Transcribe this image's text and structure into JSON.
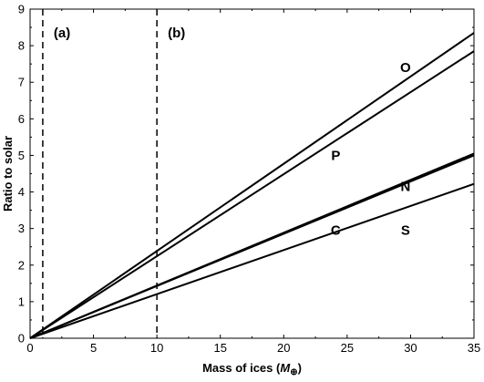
{
  "chart_data": {
    "type": "line",
    "xlabel": "Mass of ices (",
    "xlabel_unit": "M",
    "xlabel_subscript": "⊕",
    "xlabel_close": ")",
    "ylabel": "Ratio to solar",
    "xlim": [
      0,
      35
    ],
    "ylim": [
      0,
      9
    ],
    "xticks": [
      0,
      5,
      10,
      15,
      20,
      25,
      30,
      35
    ],
    "yticks": [
      0,
      1,
      2,
      3,
      4,
      5,
      6,
      7,
      8,
      9
    ],
    "grid": false,
    "legend": "none",
    "vlines": [
      {
        "x": 1,
        "label": "(a)",
        "style": "dashed"
      },
      {
        "x": 10,
        "label": "(b)",
        "style": "dashed"
      }
    ],
    "series": [
      {
        "name": "O",
        "x": [
          0,
          35
        ],
        "y": [
          0,
          8.35
        ],
        "label_at": [
          29.6,
          7.4
        ]
      },
      {
        "name": "P",
        "x": [
          0,
          35
        ],
        "y": [
          0,
          7.85
        ],
        "label_at": [
          24.1,
          5.0
        ]
      },
      {
        "name": "N",
        "x": [
          0,
          35
        ],
        "y": [
          0,
          5.05
        ],
        "label_at": [
          29.6,
          4.15
        ]
      },
      {
        "name": "C",
        "x": [
          0,
          35
        ],
        "y": [
          0,
          5.0
        ],
        "label_at": [
          24.1,
          2.95
        ]
      },
      {
        "name": "S",
        "x": [
          0,
          35
        ],
        "y": [
          0,
          4.22
        ],
        "label_at": [
          29.6,
          2.95
        ]
      }
    ]
  }
}
